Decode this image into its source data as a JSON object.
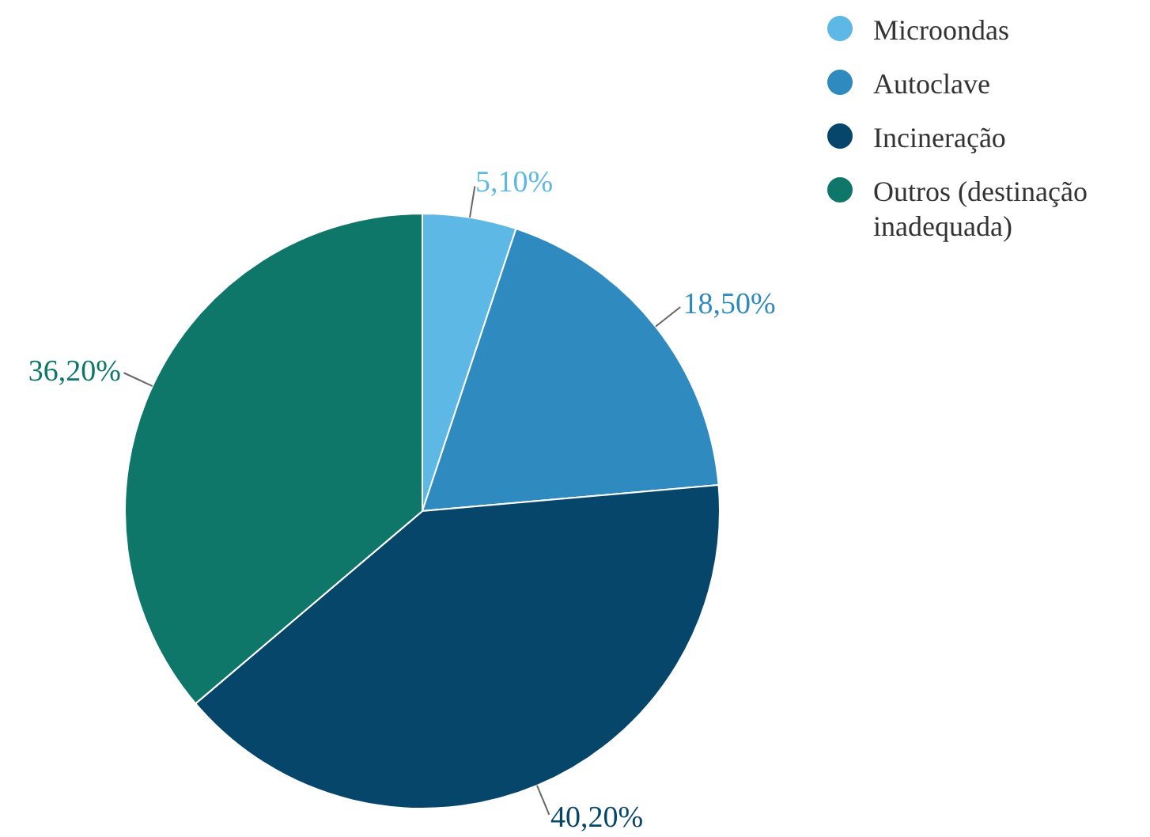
{
  "chart_data": {
    "type": "pie",
    "categories": [
      "Microondas",
      "Autoclave",
      "Incineração",
      "Outros (destinação inadequada)"
    ],
    "values": [
      5.1,
      18.5,
      40.2,
      36.2
    ],
    "value_labels": [
      "5,10%",
      "18,50%",
      "40,20%",
      "36,20%"
    ],
    "colors": [
      "#5db8e6",
      "#2f8abf",
      "#07466b",
      "#0f766a"
    ],
    "legend": "top right"
  }
}
